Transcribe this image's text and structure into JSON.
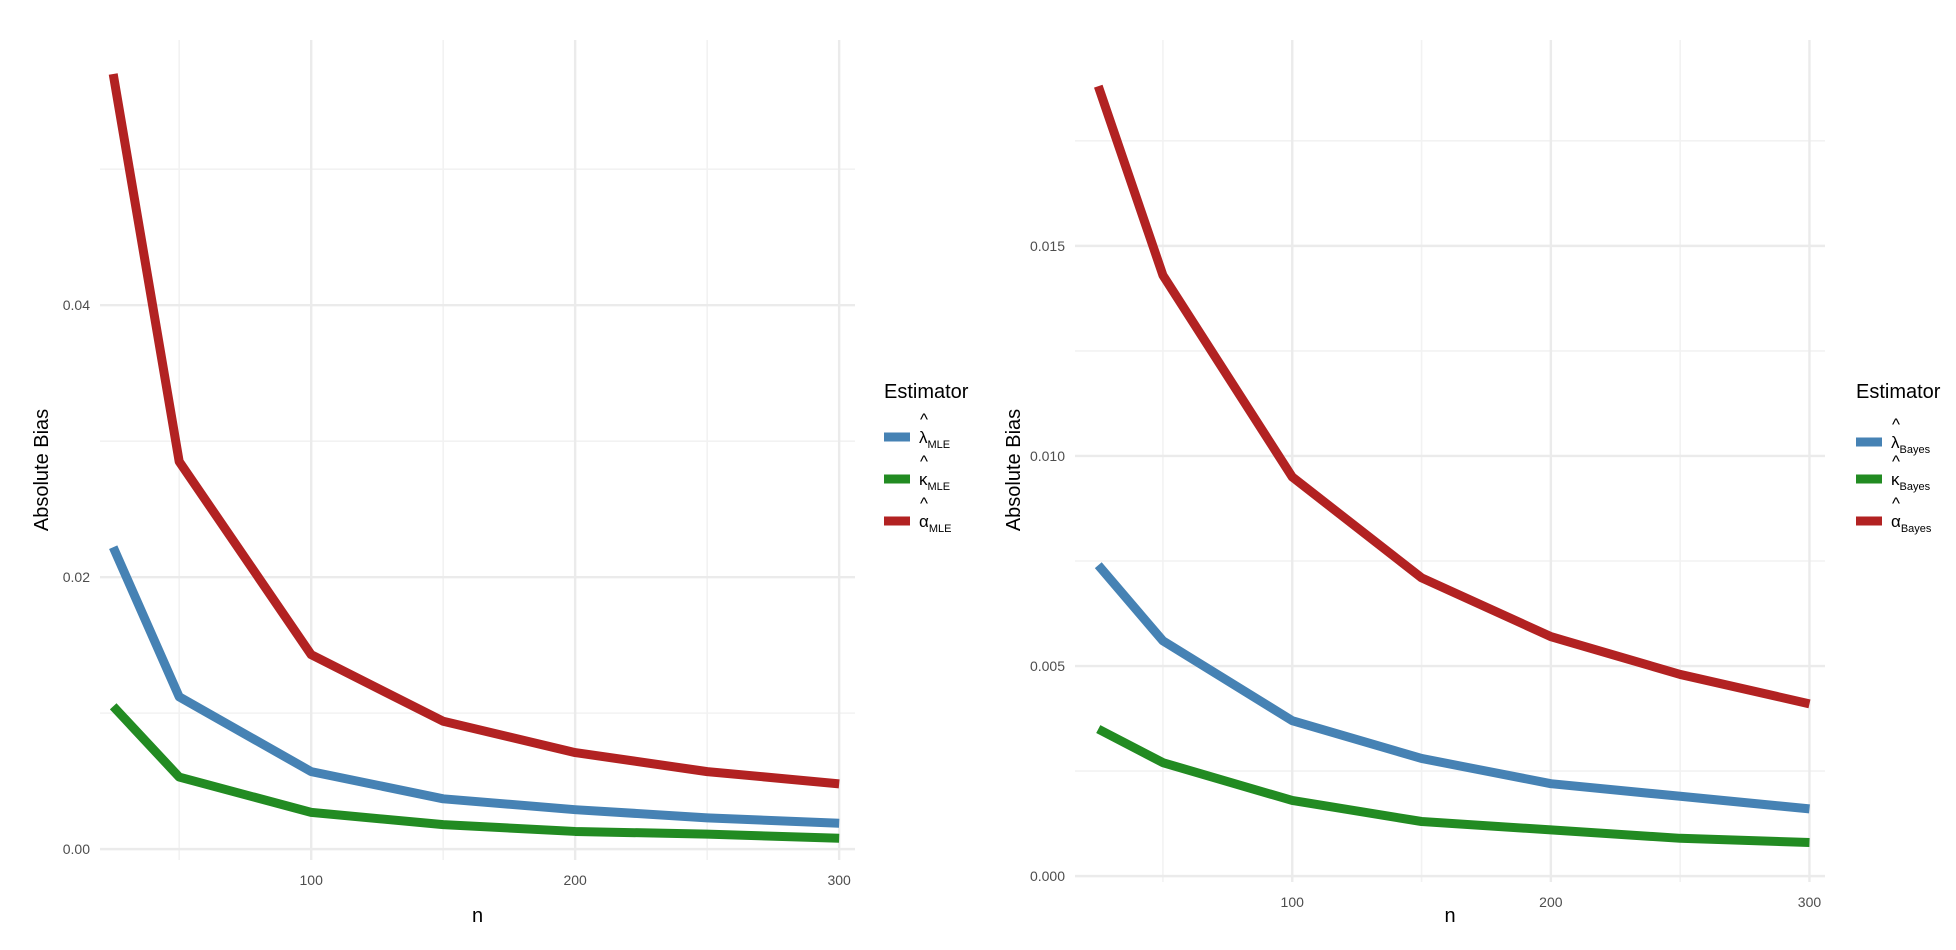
{
  "colors": {
    "lambda": "#4682B4",
    "kappa": "#228B22",
    "alpha": "#B22222"
  },
  "chart_data": [
    {
      "type": "line",
      "title": "",
      "xlabel": "n",
      "ylabel": "Absolute Bias",
      "x": [
        25,
        50,
        100,
        150,
        200,
        250,
        300
      ],
      "xlim": [
        20,
        306
      ],
      "xticks": [
        100,
        200,
        300
      ],
      "ylim": [
        -0.0008,
        0.0595
      ],
      "yticks": [
        0.0,
        0.02,
        0.04
      ],
      "ytick_labels": [
        "0.00",
        "0.02",
        "0.04"
      ],
      "grid": true,
      "legend": {
        "title": "Estimator",
        "position": "right",
        "entries": [
          {
            "sym": "λ",
            "sub": "MLE",
            "color_key": "lambda"
          },
          {
            "sym": "κ",
            "sub": "MLE",
            "color_key": "kappa"
          },
          {
            "sym": "α",
            "sub": "MLE",
            "color_key": "alpha"
          }
        ]
      },
      "series": [
        {
          "color_key": "lambda",
          "values": [
            0.0222,
            0.0112,
            0.0057,
            0.0037,
            0.0029,
            0.0023,
            0.0019
          ]
        },
        {
          "color_key": "kappa",
          "values": [
            0.0105,
            0.0053,
            0.0027,
            0.0018,
            0.0013,
            0.0011,
            0.0008
          ]
        },
        {
          "color_key": "alpha",
          "values": [
            0.057,
            0.0285,
            0.0143,
            0.0094,
            0.0071,
            0.0057,
            0.0048
          ]
        }
      ]
    },
    {
      "type": "line",
      "title": "",
      "xlabel": "n",
      "ylabel": "Absolute Bias",
      "x": [
        25,
        50,
        100,
        150,
        200,
        250,
        300
      ],
      "xlim": [
        16,
        306
      ],
      "xticks": [
        100,
        200,
        300
      ],
      "ylim": [
        -0.00014,
        0.0199
      ],
      "yticks": [
        0.0,
        0.005,
        0.01,
        0.015
      ],
      "ytick_labels": [
        "0.000",
        "0.005",
        "0.010",
        "0.015"
      ],
      "grid": true,
      "legend": {
        "title": "Estimator",
        "position": "right",
        "entries": [
          {
            "sym": "λ",
            "sub": "Bayes",
            "color_key": "lambda"
          },
          {
            "sym": "κ",
            "sub": "Bayes",
            "color_key": "kappa"
          },
          {
            "sym": "α",
            "sub": "Bayes",
            "color_key": "alpha"
          }
        ]
      },
      "series": [
        {
          "color_key": "lambda",
          "values": [
            0.0074,
            0.0056,
            0.0037,
            0.0028,
            0.0022,
            0.0019,
            0.0016
          ]
        },
        {
          "color_key": "kappa",
          "values": [
            0.0035,
            0.0027,
            0.0018,
            0.0013,
            0.0011,
            0.0009,
            0.0008
          ]
        },
        {
          "color_key": "alpha",
          "values": [
            0.0188,
            0.0143,
            0.0095,
            0.0071,
            0.0057,
            0.0048,
            0.0041
          ]
        }
      ]
    }
  ]
}
